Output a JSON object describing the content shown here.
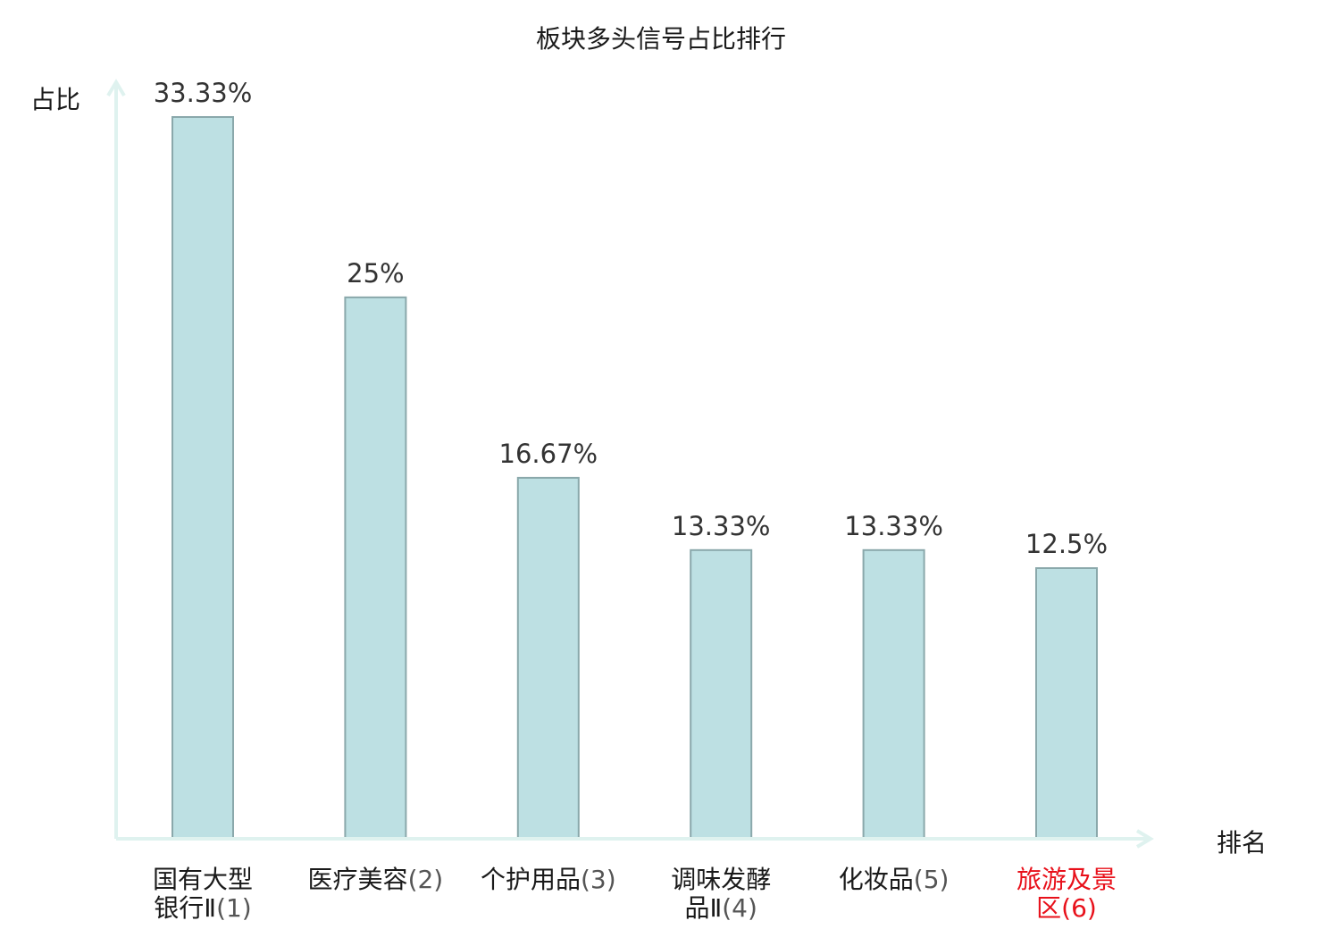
{
  "chart_data": {
    "type": "bar",
    "title": "板块多头信号占比排行",
    "xlabel": "排名",
    "ylabel": "占比",
    "categories": [
      {
        "line1": "国有大型",
        "line2": "银行Ⅱ",
        "rank": "(1)",
        "highlight": false
      },
      {
        "line1": "医疗美容",
        "line2": "",
        "rank": "(2)",
        "highlight": false
      },
      {
        "line1": "个护用品",
        "line2": "",
        "rank": "(3)",
        "highlight": false
      },
      {
        "line1": "调味发酵",
        "line2": "品Ⅱ",
        "rank": "(4)",
        "highlight": false
      },
      {
        "line1": "化妆品",
        "line2": "",
        "rank": "(5)",
        "highlight": false
      },
      {
        "line1": "旅游及景",
        "line2": "区",
        "rank": "(6)",
        "highlight": true
      }
    ],
    "values": [
      33.33,
      25,
      16.67,
      13.33,
      13.33,
      12.5
    ],
    "value_labels": [
      "33.33%",
      "25%",
      "16.67%",
      "13.33%",
      "13.33%",
      "12.5%"
    ],
    "ylim": [
      0,
      33.33
    ],
    "grid": false,
    "colors": {
      "bar_fill": "#bde0e3",
      "bar_stroke": "#8aa8ab",
      "axis": "#dff2ef",
      "label_text": "#333333",
      "highlight": "#e8101a"
    }
  }
}
